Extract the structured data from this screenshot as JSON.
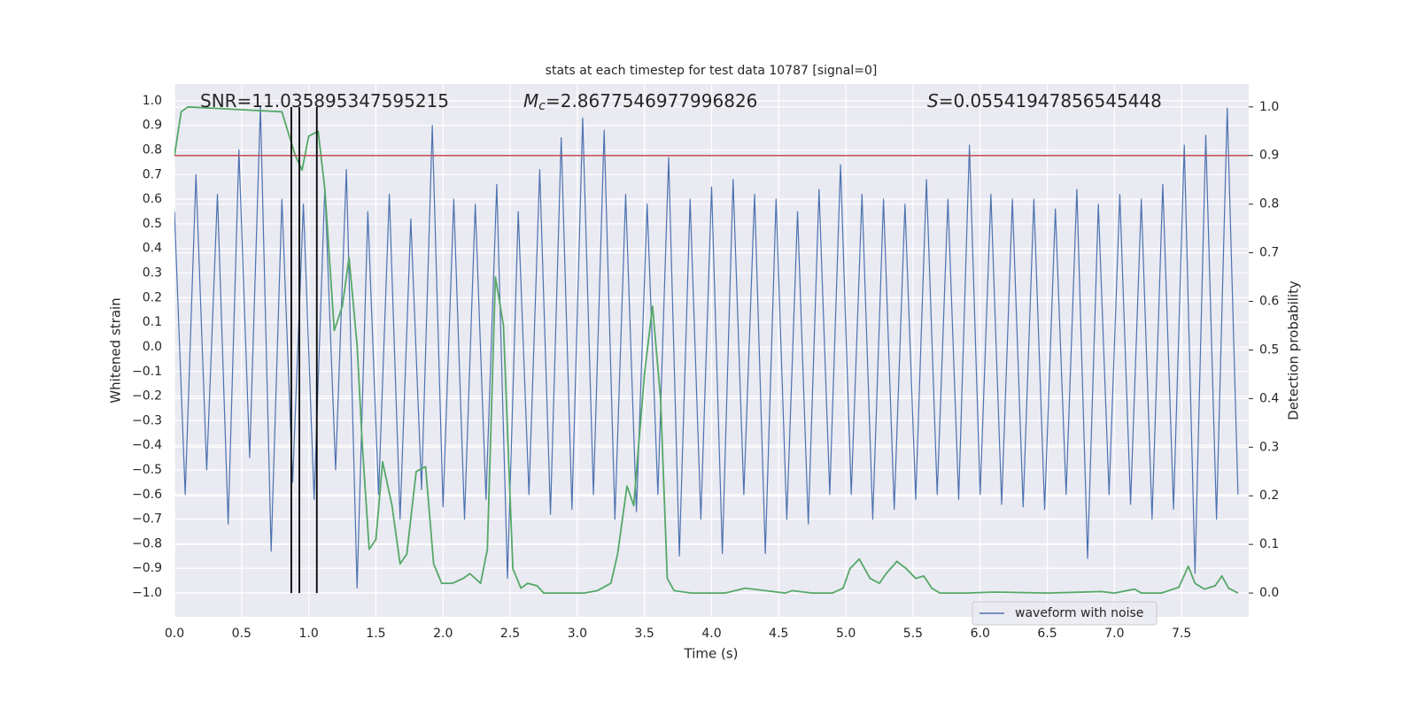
{
  "chart_data": {
    "type": "line",
    "title": "stats at each timestep for test data 10787 [signal=0]",
    "xlabel": "Time (s)",
    "ylabel": "Whitened strain",
    "y2label": "Detection probability",
    "grid": true,
    "legend": "lower right",
    "xlim": [
      0,
      8
    ],
    "xticks": [
      {
        "value": 0,
        "label": "0.0"
      },
      0.5,
      {
        "value": 1,
        "label": "1.0"
      },
      1.5,
      {
        "value": 2,
        "label": "2.0"
      },
      2.5,
      {
        "value": 3,
        "label": "3.0"
      },
      3.5,
      {
        "value": 4,
        "label": "4.0"
      },
      4.5,
      {
        "value": 5,
        "label": "5.0"
      },
      5.5,
      {
        "value": 6,
        "label": "6.0"
      },
      6.5,
      {
        "value": 7,
        "label": "7.0"
      },
      7.5
    ],
    "ylim": [
      -1.097,
      1.068
    ],
    "yticks": [
      {
        "value": 1,
        "label": "1.0"
      },
      0.9,
      0.8,
      0.7,
      0.6,
      0.5,
      0.4,
      0.3,
      0.2,
      0.1,
      {
        "value": 0,
        "label": "0.0"
      },
      {
        "value": -0.1,
        "label": "−0.1"
      },
      {
        "value": -0.2,
        "label": "−0.2"
      },
      {
        "value": -0.3,
        "label": "−0.3"
      },
      {
        "value": -0.4,
        "label": "−0.4"
      },
      {
        "value": -0.5,
        "label": "−0.5"
      },
      {
        "value": -0.6,
        "label": "−0.6"
      },
      {
        "value": -0.7,
        "label": "−0.7"
      },
      {
        "value": -0.8,
        "label": "−0.8"
      },
      {
        "value": -0.9,
        "label": "−0.9"
      },
      {
        "value": -1,
        "label": "−1.0"
      }
    ],
    "y2lim": [
      -0.049,
      1.047
    ],
    "y2ticks": [
      {
        "value": 0,
        "label": "0.0"
      },
      0.1,
      0.2,
      0.3,
      0.4,
      0.5,
      0.6,
      0.7,
      0.8,
      0.9,
      {
        "value": 1,
        "label": "1.0"
      }
    ],
    "series": [
      {
        "name": "waveform with noise",
        "color": "#4c72b0",
        "x": [
          0,
          0.08,
          0.16,
          0.24,
          0.32,
          0.4,
          0.48,
          0.56,
          0.64,
          0.72,
          0.8,
          0.88,
          0.96,
          1.04,
          1.12,
          1.2,
          1.28,
          1.36,
          1.44,
          1.52,
          1.6,
          1.68,
          1.76,
          1.84,
          1.92,
          2,
          2.08,
          2.16,
          2.24,
          2.32,
          2.4,
          2.48,
          2.56,
          2.64,
          2.72,
          2.8,
          2.88,
          2.96,
          3.04,
          3.12,
          3.2,
          3.28,
          3.36,
          3.44,
          3.52,
          3.6,
          3.68,
          3.76,
          3.84,
          3.92,
          4,
          4.08,
          4.16,
          4.24,
          4.32,
          4.4,
          4.48,
          4.56,
          4.64,
          4.72,
          4.8,
          4.88,
          4.96,
          5.04,
          5.12,
          5.2,
          5.28,
          5.36,
          5.44,
          5.52,
          5.6,
          5.68,
          5.76,
          5.84,
          5.92,
          6,
          6.08,
          6.16,
          6.24,
          6.32,
          6.4,
          6.48,
          6.56,
          6.64,
          6.72,
          6.8,
          6.88,
          6.96,
          7.04,
          7.12,
          7.2,
          7.28,
          7.36,
          7.44,
          7.52,
          7.6,
          7.68,
          7.76,
          7.84,
          7.92
        ],
        "values": [
          0.55,
          -0.6,
          0.7,
          -0.5,
          0.62,
          -0.72,
          0.8,
          -0.45,
          0.98,
          -0.83,
          0.6,
          -0.55,
          0.58,
          -0.62,
          0.65,
          -0.5,
          0.72,
          -0.98,
          0.55,
          -0.6,
          0.62,
          -0.7,
          0.52,
          -0.58,
          0.9,
          -0.65,
          0.6,
          -0.7,
          0.58,
          -0.62,
          0.66,
          -0.94,
          0.55,
          -0.6,
          0.72,
          -0.68,
          0.85,
          -0.66,
          0.93,
          -0.6,
          0.88,
          -0.7,
          0.62,
          -0.67,
          0.58,
          -0.6,
          0.77,
          -0.85,
          0.6,
          -0.7,
          0.65,
          -0.84,
          0.68,
          -0.6,
          0.62,
          -0.84,
          0.6,
          -0.7,
          0.55,
          -0.72,
          0.64,
          -0.6,
          0.74,
          -0.6,
          0.62,
          -0.7,
          0.6,
          -0.66,
          0.58,
          -0.62,
          0.68,
          -0.6,
          0.6,
          -0.62,
          0.82,
          -0.6,
          0.62,
          -0.64,
          0.6,
          -0.65,
          0.6,
          -0.66,
          0.56,
          -0.6,
          0.64,
          -0.86,
          0.58,
          -0.6,
          0.62,
          -0.64,
          0.6,
          -0.7,
          0.66,
          -0.66,
          0.82,
          -0.92,
          0.86,
          -0.7,
          0.97,
          -0.6
        ]
      },
      {
        "color": "#55a868",
        "axis": "y2",
        "x": [
          0,
          0.05,
          0.1,
          0.8,
          0.9,
          0.95,
          1,
          1.07,
          1.12,
          1.19,
          1.25,
          1.3,
          1.36,
          1.4,
          1.45,
          1.5,
          1.55,
          1.62,
          1.68,
          1.73,
          1.8,
          1.87,
          1.93,
          1.99,
          2.07,
          2.15,
          2.2,
          2.28,
          2.33,
          2.39,
          2.45,
          2.52,
          2.58,
          2.63,
          2.7,
          2.75,
          2.9,
          3.05,
          3.15,
          3.25,
          3.3,
          3.37,
          3.42,
          3.5,
          3.56,
          3.62,
          3.67,
          3.72,
          3.85,
          4,
          4.1,
          4.25,
          4.4,
          4.55,
          4.6,
          4.75,
          4.9,
          4.98,
          5.03,
          5.1,
          5.18,
          5.25,
          5.3,
          5.38,
          5.45,
          5.52,
          5.58,
          5.64,
          5.7,
          5.9,
          6.1,
          6.5,
          6.9,
          7,
          7.15,
          7.2,
          7.35,
          7.48,
          7.55,
          7.6,
          7.67,
          7.75,
          7.8,
          7.85,
          7.92
        ],
        "values": [
          0.9,
          0.99,
          1,
          0.99,
          0.9,
          0.87,
          0.94,
          0.95,
          0.83,
          0.54,
          0.59,
          0.69,
          0.51,
          0.3,
          0.09,
          0.11,
          0.27,
          0.18,
          0.06,
          0.08,
          0.25,
          0.26,
          0.06,
          0.02,
          0.02,
          0.03,
          0.04,
          0.02,
          0.09,
          0.65,
          0.55,
          0.05,
          0.01,
          0.02,
          0.015,
          0,
          0,
          0,
          0.005,
          0.02,
          0.08,
          0.22,
          0.18,
          0.45,
          0.59,
          0.4,
          0.03,
          0.005,
          0,
          0,
          0,
          0.01,
          0.005,
          0,
          0.005,
          0,
          0,
          0.01,
          0.05,
          0.07,
          0.03,
          0.02,
          0.04,
          0.065,
          0.05,
          0.03,
          0.035,
          0.01,
          0,
          0,
          0.002,
          0,
          0.003,
          0,
          0.008,
          0,
          0,
          0.012,
          0.055,
          0.02,
          0.008,
          0.015,
          0.035,
          0.01,
          0
        ]
      }
    ],
    "hlines": [
      {
        "value": 0.9,
        "axis": "y2",
        "color": "#c44e52"
      }
    ],
    "vlines": {
      "values": [
        0.87,
        0.93,
        1.06
      ],
      "color": "#000000"
    },
    "annotations": [
      {
        "text": "SNR=11.035895347595215"
      },
      {
        "symbol": "M",
        "subscript": "c",
        "text": "=2.8677546977996826"
      },
      {
        "symbol": "S",
        "text": "=0.05541947856545448"
      }
    ]
  }
}
